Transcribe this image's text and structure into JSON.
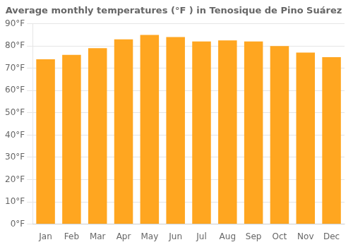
{
  "chart_data": {
    "type": "bar",
    "title": "Average monthly temperatures (°F ) in Tenosique de Pino Suárez",
    "categories": [
      "Jan",
      "Feb",
      "Mar",
      "Apr",
      "May",
      "Jun",
      "Jul",
      "Aug",
      "Sep",
      "Oct",
      "Nov",
      "Dec"
    ],
    "values": [
      74,
      76,
      79,
      83,
      85,
      84,
      82,
      82.5,
      82,
      80,
      77,
      75
    ],
    "color": "#FFA620",
    "ylim": [
      0,
      90
    ],
    "yticks": [
      {
        "value": 0,
        "label": "0°F"
      },
      {
        "value": 10,
        "label": "10°F"
      },
      {
        "value": 20,
        "label": "20°F"
      },
      {
        "value": 30,
        "label": "30°F"
      },
      {
        "value": 40,
        "label": "40°F"
      },
      {
        "value": 50,
        "label": "50°F"
      },
      {
        "value": 60,
        "label": "60°F"
      },
      {
        "value": 70,
        "label": "70°F"
      },
      {
        "value": 80,
        "label": "80°F"
      },
      {
        "value": 90,
        "label": "90°F"
      }
    ],
    "grid": true
  }
}
